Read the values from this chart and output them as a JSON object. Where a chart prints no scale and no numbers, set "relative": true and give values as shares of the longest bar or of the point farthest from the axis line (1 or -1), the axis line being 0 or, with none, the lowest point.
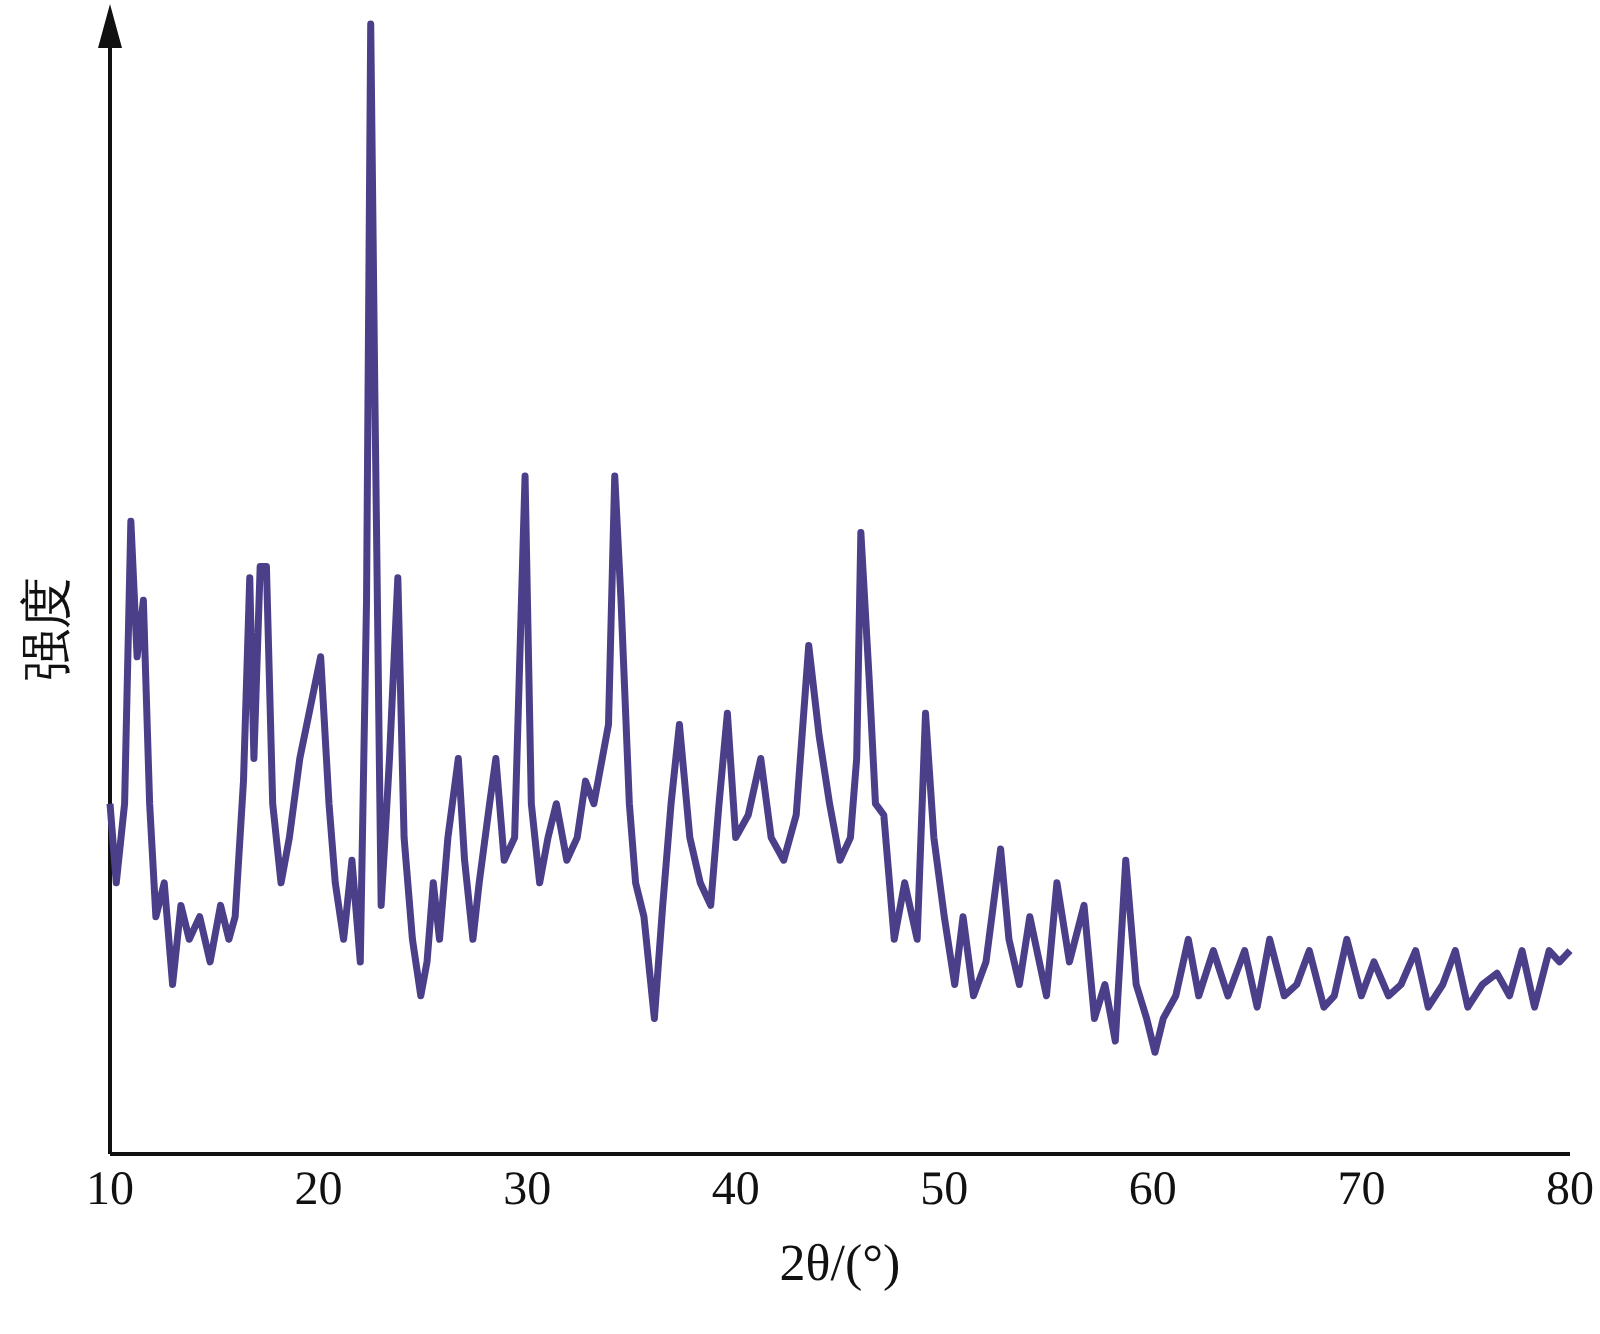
{
  "chart_data": {
    "type": "line",
    "relative": true,
    "xlabel": "2θ/(°)",
    "ylabel": "强度",
    "xlim": [
      10,
      80
    ],
    "xticks": [
      10,
      20,
      30,
      40,
      50,
      60,
      70,
      80
    ],
    "marker": "none",
    "line_style": "solid",
    "series": [
      {
        "color": "#4b3f8a",
        "x": [
          10.0,
          10.3,
          10.7,
          11.0,
          11.3,
          11.6,
          11.9,
          12.2,
          12.6,
          13.0,
          13.4,
          13.8,
          14.3,
          14.8,
          15.3,
          15.7,
          16.0,
          16.4,
          16.7,
          16.9,
          17.2,
          17.5,
          17.8,
          18.2,
          18.6,
          19.1,
          20.1,
          20.5,
          20.8,
          21.2,
          21.6,
          22.0,
          22.3,
          22.5,
          22.7,
          23.0,
          23.4,
          23.8,
          24.1,
          24.5,
          24.9,
          25.2,
          25.5,
          25.8,
          26.2,
          26.7,
          27.0,
          27.4,
          27.7,
          28.2,
          28.5,
          28.9,
          29.4,
          29.9,
          30.2,
          30.6,
          31.0,
          31.4,
          31.9,
          32.4,
          32.8,
          33.2,
          33.9,
          34.2,
          34.5,
          34.9,
          35.2,
          35.6,
          36.1,
          36.5,
          36.9,
          37.3,
          37.8,
          38.3,
          38.8,
          39.2,
          39.6,
          40.0,
          40.6,
          41.2,
          41.7,
          42.3,
          42.9,
          43.5,
          44.0,
          44.5,
          45.0,
          45.5,
          45.8,
          46.0,
          46.4,
          46.7,
          47.1,
          47.6,
          48.1,
          48.7,
          49.1,
          49.5,
          50.0,
          50.5,
          50.9,
          51.4,
          52.0,
          52.7,
          53.1,
          53.6,
          54.1,
          54.9,
          55.4,
          56.0,
          56.7,
          57.2,
          57.7,
          58.2,
          58.7,
          59.2,
          59.7,
          60.1,
          60.5,
          61.1,
          61.7,
          62.2,
          62.9,
          63.6,
          64.4,
          65.0,
          65.6,
          66.3,
          66.9,
          67.5,
          68.2,
          68.7,
          69.3,
          70.0,
          70.6,
          71.3,
          71.9,
          72.6,
          73.2,
          73.9,
          74.5,
          75.1,
          75.8,
          76.5,
          77.1,
          77.7,
          78.3,
          79.0,
          79.5,
          80.0
        ],
        "values": [
          0.31,
          0.24,
          0.31,
          0.56,
          0.44,
          0.49,
          0.31,
          0.21,
          0.24,
          0.15,
          0.22,
          0.19,
          0.21,
          0.17,
          0.22,
          0.19,
          0.21,
          0.33,
          0.51,
          0.35,
          0.52,
          0.52,
          0.31,
          0.24,
          0.28,
          0.35,
          0.44,
          0.31,
          0.24,
          0.19,
          0.26,
          0.17,
          0.49,
          1.0,
          0.67,
          0.22,
          0.35,
          0.51,
          0.28,
          0.19,
          0.14,
          0.17,
          0.24,
          0.19,
          0.28,
          0.35,
          0.26,
          0.19,
          0.24,
          0.31,
          0.35,
          0.26,
          0.28,
          0.6,
          0.31,
          0.24,
          0.28,
          0.31,
          0.26,
          0.28,
          0.33,
          0.31,
          0.38,
          0.6,
          0.49,
          0.31,
          0.24,
          0.21,
          0.12,
          0.22,
          0.31,
          0.38,
          0.28,
          0.24,
          0.22,
          0.31,
          0.39,
          0.28,
          0.3,
          0.35,
          0.28,
          0.26,
          0.3,
          0.45,
          0.37,
          0.31,
          0.26,
          0.28,
          0.35,
          0.55,
          0.42,
          0.31,
          0.3,
          0.19,
          0.24,
          0.19,
          0.39,
          0.28,
          0.21,
          0.15,
          0.21,
          0.14,
          0.17,
          0.27,
          0.19,
          0.15,
          0.21,
          0.14,
          0.24,
          0.17,
          0.22,
          0.12,
          0.15,
          0.1,
          0.26,
          0.15,
          0.12,
          0.09,
          0.12,
          0.14,
          0.19,
          0.14,
          0.18,
          0.14,
          0.18,
          0.13,
          0.19,
          0.14,
          0.15,
          0.18,
          0.13,
          0.14,
          0.19,
          0.14,
          0.17,
          0.14,
          0.15,
          0.18,
          0.13,
          0.15,
          0.18,
          0.13,
          0.15,
          0.16,
          0.14,
          0.18,
          0.13,
          0.18,
          0.17,
          0.18
        ]
      }
    ]
  }
}
